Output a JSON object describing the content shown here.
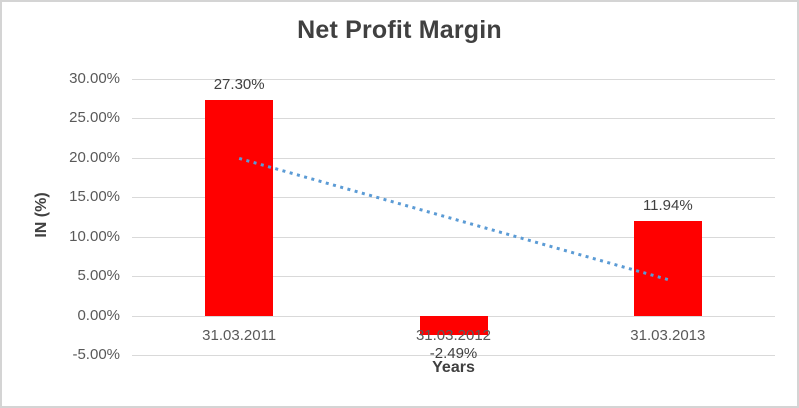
{
  "chart_data": {
    "type": "bar",
    "title": "Net Profit Margin",
    "xlabel": "Years",
    "ylabel": "IN (%)",
    "categories": [
      "31.03.2011",
      "31.03.2012",
      "31.03.2013"
    ],
    "values": [
      27.3,
      -2.49,
      11.94
    ],
    "value_labels": [
      "27.30%",
      "-2.49%",
      "11.94%"
    ],
    "y_ticks": [
      "30.00%",
      "25.00%",
      "20.00%",
      "15.00%",
      "10.00%",
      "5.00%",
      "0.00%",
      "-5.00%"
    ],
    "y_tick_values": [
      30,
      25,
      20,
      15,
      10,
      5,
      0,
      -5
    ],
    "ylim": [
      -5,
      30
    ],
    "grid": true,
    "legend": false,
    "bar_color": "#FF0000",
    "gridline_color": "#D9D9D9",
    "trendline": {
      "style": "dotted",
      "color": "#5B9BD5",
      "start_pct": 19.93,
      "end_pct": 4.57,
      "start_category": "31.03.2011",
      "end_category": "31.03.2013"
    }
  }
}
